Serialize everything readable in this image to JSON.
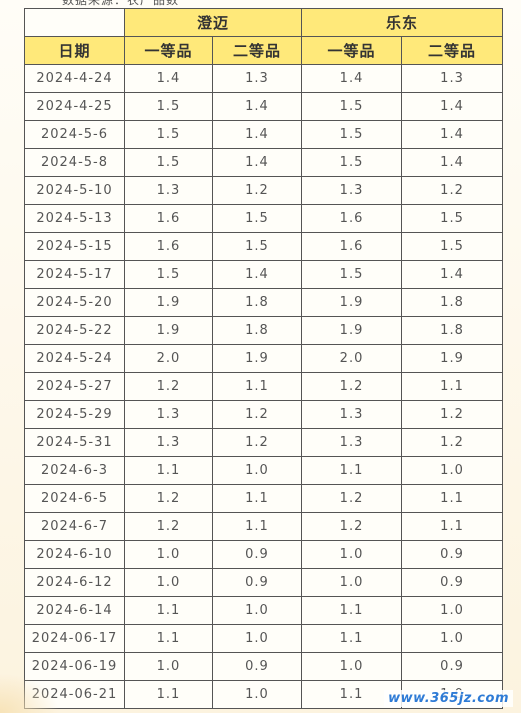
{
  "top_note": "数据来源：农产品数",
  "header": {
    "region_1": "澄迈",
    "region_2": "乐东",
    "date_label": "日期",
    "grade_1": "一等品",
    "grade_2": "二等品"
  },
  "rows": [
    {
      "date": "2024-4-24",
      "v": [
        "1.4",
        "1.3",
        "1.4",
        "1.3"
      ]
    },
    {
      "date": "2024-4-25",
      "v": [
        "1.5",
        "1.4",
        "1.5",
        "1.4"
      ]
    },
    {
      "date": "2024-5-6",
      "v": [
        "1.5",
        "1.4",
        "1.5",
        "1.4"
      ]
    },
    {
      "date": "2024-5-8",
      "v": [
        "1.5",
        "1.4",
        "1.5",
        "1.4"
      ]
    },
    {
      "date": "2024-5-10",
      "v": [
        "1.3",
        "1.2",
        "1.3",
        "1.2"
      ]
    },
    {
      "date": "2024-5-13",
      "v": [
        "1.6",
        "1.5",
        "1.6",
        "1.5"
      ]
    },
    {
      "date": "2024-5-15",
      "v": [
        "1.6",
        "1.5",
        "1.6",
        "1.5"
      ]
    },
    {
      "date": "2024-5-17",
      "v": [
        "1.5",
        "1.4",
        "1.5",
        "1.4"
      ]
    },
    {
      "date": "2024-5-20",
      "v": [
        "1.9",
        "1.8",
        "1.9",
        "1.8"
      ]
    },
    {
      "date": "2024-5-22",
      "v": [
        "1.9",
        "1.8",
        "1.9",
        "1.8"
      ]
    },
    {
      "date": "2024-5-24",
      "v": [
        "2.0",
        "1.9",
        "2.0",
        "1.9"
      ]
    },
    {
      "date": "2024-5-27",
      "v": [
        "1.2",
        "1.1",
        "1.2",
        "1.1"
      ]
    },
    {
      "date": "2024-5-29",
      "v": [
        "1.3",
        "1.2",
        "1.3",
        "1.2"
      ]
    },
    {
      "date": "2024-5-31",
      "v": [
        "1.3",
        "1.2",
        "1.3",
        "1.2"
      ]
    },
    {
      "date": "2024-6-3",
      "v": [
        "1.1",
        "1.0",
        "1.1",
        "1.0"
      ]
    },
    {
      "date": "2024-6-5",
      "v": [
        "1.2",
        "1.1",
        "1.2",
        "1.1"
      ]
    },
    {
      "date": "2024-6-7",
      "v": [
        "1.2",
        "1.1",
        "1.2",
        "1.1"
      ]
    },
    {
      "date": "2024-6-10",
      "v": [
        "1.0",
        "0.9",
        "1.0",
        "0.9"
      ]
    },
    {
      "date": "2024-6-12",
      "v": [
        "1.0",
        "0.9",
        "1.0",
        "0.9"
      ]
    },
    {
      "date": "2024-6-14",
      "v": [
        "1.1",
        "1.0",
        "1.1",
        "1.0"
      ]
    },
    {
      "date": "2024-06-17",
      "v": [
        "1.1",
        "1.0",
        "1.1",
        "1.0"
      ]
    },
    {
      "date": "2024-06-19",
      "v": [
        "1.0",
        "0.9",
        "1.0",
        "0.9"
      ]
    },
    {
      "date": "2024-06-21",
      "v": [
        "1.1",
        "1.0",
        "1.1",
        "1.0"
      ]
    }
  ],
  "watermark": "www.365jz.com",
  "colors": {
    "header_bg": "#ffe97a",
    "border": "#555555",
    "watermark": "#2e7bd6"
  }
}
